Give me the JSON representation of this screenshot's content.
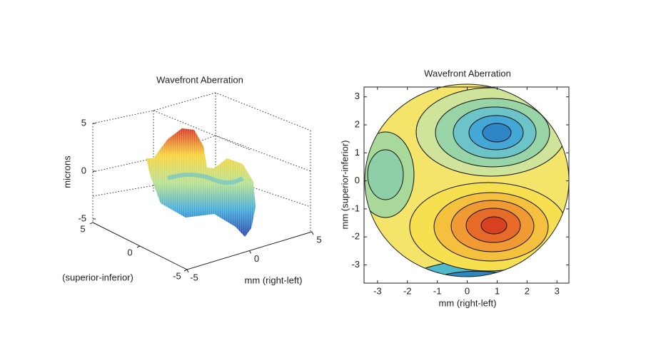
{
  "chart_data": [
    {
      "type": "surface",
      "title": "Wavefront Aberration",
      "zlabel": "microns",
      "xlabel": "mm (right-left)",
      "ylabel": "(superior-inferior)",
      "xlim": [
        -5,
        5
      ],
      "xticks": [
        -5,
        0,
        5
      ],
      "ylim": [
        -5,
        5
      ],
      "yticks": [
        -5,
        0,
        5
      ],
      "zlim": [
        -5,
        5
      ],
      "zticks": [
        -5,
        0,
        5
      ]
    },
    {
      "type": "contour",
      "title": "Wavefront Aberration",
      "xlabel": "mm (right-left)",
      "ylabel": "mm (superior-inferior)",
      "xlim": [
        -3.45,
        3.4
      ],
      "xticks": [
        -3,
        -2,
        -1,
        0,
        1,
        2,
        3
      ],
      "ylim": [
        -3.65,
        3.35
      ],
      "yticks": [
        -3,
        -2,
        -1,
        0,
        1,
        2,
        3
      ]
    }
  ]
}
